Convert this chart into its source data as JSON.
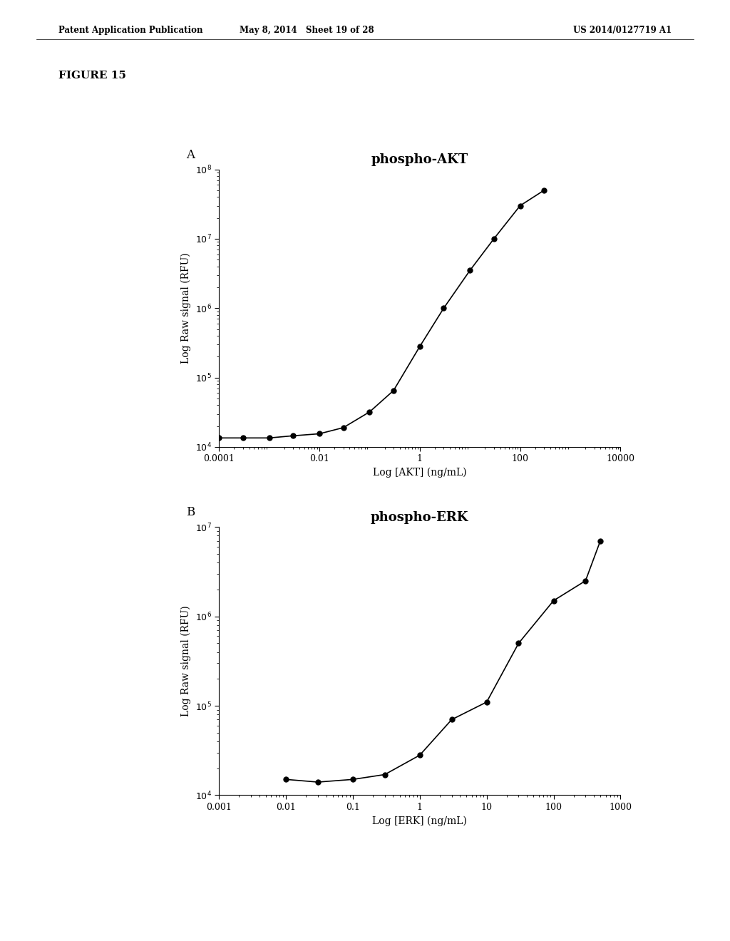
{
  "fig_label": "FIGURE 15",
  "header_left": "Patent Application Publication",
  "header_mid": "May 8, 2014   Sheet 19 of 28",
  "header_right": "US 2014/0127719 A1",
  "plot_A": {
    "panel_label": "A",
    "title": "phospho-AKT",
    "xlabel": "Log [AKT] (ng/mL)",
    "ylabel": "Log Raw signal (RFU)",
    "x_data": [
      0.0001,
      0.0003,
      0.001,
      0.003,
      0.01,
      0.03,
      0.1,
      0.3,
      1,
      3,
      10,
      30,
      100,
      300
    ],
    "y_data": [
      13500.0,
      13500.0,
      13500.0,
      14500.0,
      15500.0,
      19000.0,
      32000.0,
      65000.0,
      280000.0,
      1000000.0,
      3500000.0,
      10000000.0,
      30000000.0,
      50000000.0
    ]
  },
  "plot_B": {
    "panel_label": "B",
    "title": "phospho-ERK",
    "xlabel": "Log [ERK] (ng/mL)",
    "ylabel": "Log Raw signal (RFU)",
    "x_data": [
      0.01,
      0.03,
      0.1,
      0.3,
      1,
      3,
      10,
      30,
      100,
      300,
      500
    ],
    "y_data": [
      15000.0,
      14000.0,
      15000.0,
      17000.0,
      28000.0,
      70000.0,
      110000.0,
      500000.0,
      1500000.0,
      2500000.0,
      7000000.0
    ]
  },
  "line_color": "#000000",
  "marker_color": "#000000",
  "marker_size": 5,
  "line_width": 1.2,
  "bg_color": "#ffffff",
  "font_size_title": 13,
  "font_size_label": 10,
  "font_size_tick": 9,
  "font_size_header": 8.5,
  "font_size_fig_label": 11,
  "font_size_panel": 12
}
